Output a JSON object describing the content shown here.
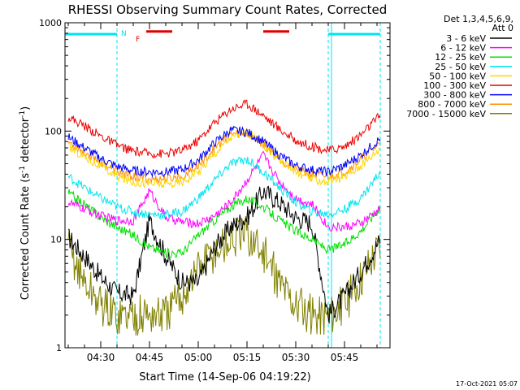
{
  "title": "RHESSI Observing Summary Count Rates, Corrected",
  "ylabel_main": "Corrected Count Rate (s",
  "ylabel_sup1": "-1",
  "ylabel_mid": " detector",
  "ylabel_sup2": "-1",
  "ylabel_end": ")",
  "xlabel": "Start Time (14-Sep-06 04:19:22)",
  "timestamp": "17-Oct-2021 05:07",
  "legend_header": [
    "Det 1,3,4,5,6,9,",
    "Att 0"
  ],
  "flag_labels": {
    "n": "N",
    "f": "F"
  },
  "colors": {
    "axis": "#000000",
    "night_band": "#00e5ee",
    "flare_bar": "#e00000"
  },
  "chart_data": {
    "type": "line",
    "y_scale": "log",
    "ylim": [
      1,
      1000
    ],
    "yticks": [
      {
        "value": 1,
        "label": "1"
      },
      {
        "value": 10,
        "label": "10"
      },
      {
        "value": 100,
        "label": "100"
      },
      {
        "value": 1000,
        "label": "1000"
      }
    ],
    "x_unit": "minutes",
    "xlim": [
      "04:19",
      "05:59"
    ],
    "xticks": [
      {
        "value": "04:30",
        "label": "04:30"
      },
      {
        "value": "04:45",
        "label": "04:45"
      },
      {
        "value": "05:00",
        "label": "05:00"
      },
      {
        "value": "05:15",
        "label": "05:15"
      },
      {
        "value": "05:30",
        "label": "05:30"
      },
      {
        "value": "05:45",
        "label": "05:45"
      }
    ],
    "x_minor_step_min": 5,
    "grid": false,
    "legend_position": "right",
    "night_intervals": [
      [
        "04:19",
        "04:35"
      ],
      [
        "05:40",
        "05:56"
      ]
    ],
    "saa_marker_time": "05:41",
    "flare_bars": [
      {
        "start": "04:44",
        "end": "04:52",
        "level": 830
      },
      {
        "start": "05:20",
        "end": "05:28",
        "level": 830
      }
    ],
    "x": [
      "04:20",
      "04:25",
      "04:30",
      "04:35",
      "04:40",
      "04:45",
      "04:50",
      "04:55",
      "05:00",
      "05:05",
      "05:10",
      "05:15",
      "05:20",
      "05:25",
      "05:30",
      "05:35",
      "05:40",
      "05:45",
      "05:50",
      "05:56"
    ],
    "series": [
      {
        "name": "3 - 6 keV",
        "color": "#000000",
        "values": [
          10.5,
          7.0,
          4.5,
          3.2,
          3.0,
          15.0,
          7.0,
          4.0,
          4.0,
          8.5,
          13.0,
          16.0,
          28.0,
          22.0,
          16.0,
          14.0,
          2.0,
          3.0,
          5.0,
          10.0
        ]
      },
      {
        "name": "6 - 12 keV",
        "color": "#ff00ff",
        "values": [
          22.0,
          19.0,
          16.5,
          15.0,
          15.0,
          28.0,
          16.0,
          14.5,
          14.0,
          16.5,
          22.0,
          35.0,
          60.0,
          34.0,
          24.0,
          21.0,
          13.0,
          13.0,
          14.0,
          19.0
        ]
      },
      {
        "name": "12 - 25 keV",
        "color": "#00e000",
        "values": [
          27.0,
          21.0,
          16.0,
          13.0,
          11.0,
          8.5,
          7.5,
          7.5,
          11.0,
          15.0,
          20.0,
          24.0,
          20.0,
          15.0,
          12.0,
          10.0,
          8.0,
          9.0,
          12.0,
          20.0
        ]
      },
      {
        "name": "25 - 50 keV",
        "color": "#00e5ee",
        "values": [
          38.0,
          30.0,
          24.0,
          20.0,
          18.0,
          17.0,
          17.0,
          18.0,
          24.0,
          35.0,
          50.0,
          55.0,
          42.0,
          30.0,
          22.0,
          18.0,
          17.0,
          19.0,
          24.0,
          42.0
        ]
      },
      {
        "name": "50 - 100 keV",
        "color": "#ffd700",
        "values": [
          72.0,
          58.0,
          47.0,
          38.0,
          34.0,
          33.0,
          32.0,
          34.0,
          42.0,
          62.0,
          88.0,
          98.0,
          75.0,
          54.0,
          42.0,
          36.0,
          34.0,
          38.0,
          48.0,
          70.0
        ]
      },
      {
        "name": "100 - 300 keV",
        "color": "#ee0000",
        "values": [
          135.0,
          112.0,
          90.0,
          74.0,
          65.0,
          62.0,
          62.0,
          66.0,
          82.0,
          120.0,
          160.0,
          180.0,
          140.0,
          104.0,
          82.0,
          72.0,
          66.0,
          72.0,
          92.0,
          140.0
        ]
      },
      {
        "name": "300 - 800 keV",
        "color": "#0000ff",
        "values": [
          88.0,
          70.0,
          56.0,
          47.0,
          43.0,
          42.0,
          42.0,
          44.0,
          54.0,
          78.0,
          102.0,
          98.0,
          80.0,
          60.0,
          48.0,
          44.0,
          42.0,
          48.0,
          60.0,
          85.0
        ]
      },
      {
        "name": "800 - 7000 keV",
        "color": "#ff9000",
        "values": [
          80.0,
          64.0,
          52.0,
          42.0,
          38.0,
          36.0,
          36.0,
          38.0,
          48.0,
          70.0,
          94.0,
          95.0,
          76.0,
          56.0,
          44.0,
          40.0,
          38.0,
          42.0,
          55.0,
          78.0
        ]
      },
      {
        "name": "7000 - 15000 keV",
        "color": "#808000",
        "values": [
          8.5,
          4.0,
          2.5,
          2.0,
          2.0,
          2.0,
          2.0,
          3.0,
          5.5,
          7.5,
          10.0,
          11.0,
          7.5,
          4.0,
          2.5,
          2.0,
          2.0,
          2.5,
          4.5,
          9.0
        ]
      }
    ]
  }
}
